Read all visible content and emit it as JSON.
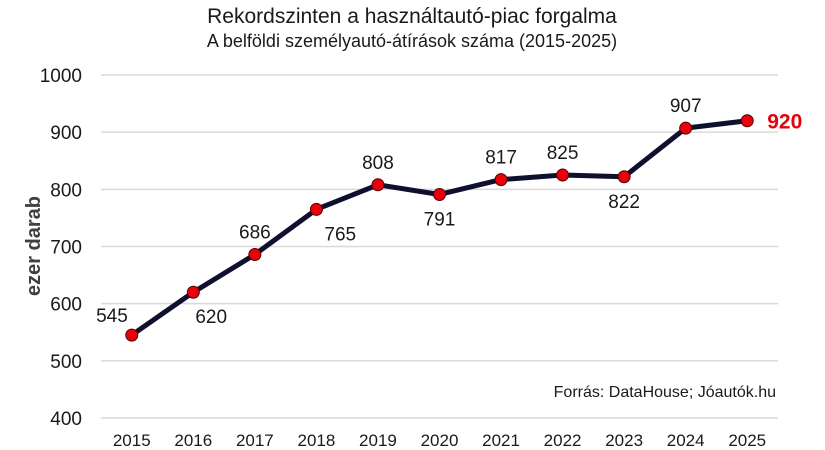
{
  "chart_data": {
    "type": "line",
    "title": "Rekordszinten a használtautó-piac forgalma",
    "subtitle": "A belföldi személyautó-átírások száma (2015-2025)",
    "xlabel": "",
    "ylabel": "ezer darab",
    "categories": [
      "2015",
      "2016",
      "2017",
      "2018",
      "2019",
      "2020",
      "2021",
      "2022",
      "2023",
      "2024",
      "2025"
    ],
    "values": [
      545,
      620,
      686,
      765,
      808,
      791,
      817,
      825,
      822,
      907,
      920
    ],
    "ylim": [
      400,
      1000
    ],
    "yticks": [
      "400",
      "500",
      "600",
      "700",
      "800",
      "900",
      "1000"
    ],
    "grid": true,
    "legend": "none",
    "source": "Forrás: DataHouse; Jóautók.hu",
    "colors": {
      "line": "#0f0f30",
      "marker": "#e8000b",
      "highlight_label": "#e8000b",
      "grid": "#d9d9d9",
      "text": "#1a1a1a"
    }
  }
}
